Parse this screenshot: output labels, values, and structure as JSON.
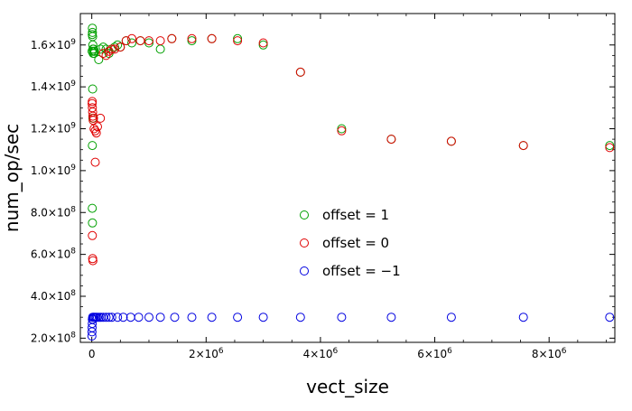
{
  "chart_data": {
    "type": "scatter",
    "xlabel": "vect_size",
    "ylabel": "num_op/sec",
    "xlim": [
      -200000,
      9150000
    ],
    "ylim": [
      180000000,
      1750000000
    ],
    "x_ticks": [
      {
        "value": 0,
        "mantissa": "0",
        "exp": ""
      },
      {
        "value": 2000000,
        "mantissa": "2×10",
        "exp": "6"
      },
      {
        "value": 4000000,
        "mantissa": "4×10",
        "exp": "6"
      },
      {
        "value": 6000000,
        "mantissa": "6×10",
        "exp": "6"
      },
      {
        "value": 8000000,
        "mantissa": "8×10",
        "exp": "6"
      }
    ],
    "y_ticks": [
      {
        "value": 200000000,
        "mantissa": "2.0×10",
        "exp": "8"
      },
      {
        "value": 400000000,
        "mantissa": "4.0×10",
        "exp": "8"
      },
      {
        "value": 600000000,
        "mantissa": "6.0×10",
        "exp": "8"
      },
      {
        "value": 800000000,
        "mantissa": "8.0×10",
        "exp": "8"
      },
      {
        "value": 1000000000,
        "mantissa": "1.0×10",
        "exp": "9"
      },
      {
        "value": 1200000000,
        "mantissa": "1.2×10",
        "exp": "9"
      },
      {
        "value": 1400000000,
        "mantissa": "1.4×10",
        "exp": "9"
      },
      {
        "value": 1600000000,
        "mantissa": "1.6×10",
        "exp": "9"
      }
    ],
    "grid": false,
    "legend_placement": "center-right",
    "series": [
      {
        "name": "offset = 1",
        "color": "#00a000",
        "points": [
          [
            5000,
            1570000000
          ],
          [
            8000,
            1650000000
          ],
          [
            10000,
            1680000000
          ],
          [
            12000,
            1660000000
          ],
          [
            15000,
            1640000000
          ],
          [
            18000,
            1600000000
          ],
          [
            20000,
            1580000000
          ],
          [
            25000,
            1560000000
          ],
          [
            30000,
            1580000000
          ],
          [
            35000,
            1570000000
          ],
          [
            40000,
            1560000000
          ],
          [
            50000,
            1570000000
          ],
          [
            15000,
            1390000000
          ],
          [
            20000,
            1250000000
          ],
          [
            10000,
            1120000000
          ],
          [
            8000,
            820000000
          ],
          [
            12000,
            750000000
          ],
          [
            120000,
            1530000000
          ],
          [
            150000,
            1580000000
          ],
          [
            200000,
            1590000000
          ],
          [
            250000,
            1580000000
          ],
          [
            300000,
            1560000000
          ],
          [
            350000,
            1580000000
          ],
          [
            400000,
            1590000000
          ],
          [
            450000,
            1600000000
          ],
          [
            500000,
            1590000000
          ],
          [
            600000,
            1620000000
          ],
          [
            700000,
            1610000000
          ],
          [
            850000,
            1620000000
          ],
          [
            1000000,
            1610000000
          ],
          [
            1200000,
            1580000000
          ],
          [
            1400000,
            1630000000
          ],
          [
            1750000,
            1620000000
          ],
          [
            2100000,
            1630000000
          ],
          [
            2550000,
            1630000000
          ],
          [
            3000000,
            1600000000
          ],
          [
            3650000,
            1470000000
          ],
          [
            4370000,
            1200000000
          ],
          [
            5240000,
            1150000000
          ],
          [
            6290000,
            1140000000
          ],
          [
            7550000,
            1120000000
          ],
          [
            9060000,
            1120000000
          ]
        ]
      },
      {
        "name": "offset = 0",
        "color": "#e00000",
        "points": [
          [
            5000,
            1320000000
          ],
          [
            8000,
            1330000000
          ],
          [
            10000,
            1300000000
          ],
          [
            15000,
            1280000000
          ],
          [
            20000,
            1260000000
          ],
          [
            25000,
            1240000000
          ],
          [
            30000,
            1250000000
          ],
          [
            40000,
            1200000000
          ],
          [
            60000,
            1190000000
          ],
          [
            80000,
            1180000000
          ],
          [
            100000,
            1210000000
          ],
          [
            150000,
            1250000000
          ],
          [
            60000,
            1040000000
          ],
          [
            10000,
            690000000
          ],
          [
            15000,
            580000000
          ],
          [
            20000,
            570000000
          ],
          [
            200000,
            1560000000
          ],
          [
            250000,
            1550000000
          ],
          [
            300000,
            1570000000
          ],
          [
            350000,
            1580000000
          ],
          [
            400000,
            1580000000
          ],
          [
            500000,
            1590000000
          ],
          [
            600000,
            1620000000
          ],
          [
            700000,
            1630000000
          ],
          [
            850000,
            1620000000
          ],
          [
            1000000,
            1620000000
          ],
          [
            1200000,
            1620000000
          ],
          [
            1400000,
            1630000000
          ],
          [
            1750000,
            1630000000
          ],
          [
            2100000,
            1630000000
          ],
          [
            2550000,
            1620000000
          ],
          [
            3000000,
            1610000000
          ],
          [
            3650000,
            1470000000
          ],
          [
            4370000,
            1190000000
          ],
          [
            5240000,
            1150000000
          ],
          [
            6290000,
            1140000000
          ],
          [
            7550000,
            1120000000
          ],
          [
            9060000,
            1110000000
          ]
        ]
      },
      {
        "name": "offset = −1",
        "color": "#0000e0",
        "points": [
          [
            2000,
            210000000
          ],
          [
            4000,
            230000000
          ],
          [
            6000,
            250000000
          ],
          [
            8000,
            270000000
          ],
          [
            10000,
            290000000
          ],
          [
            15000,
            300000000
          ],
          [
            20000,
            290000000
          ],
          [
            30000,
            300000000
          ],
          [
            40000,
            300000000
          ],
          [
            60000,
            300000000
          ],
          [
            80000,
            300000000
          ],
          [
            100000,
            300000000
          ],
          [
            130000,
            300000000
          ],
          [
            160000,
            300000000
          ],
          [
            200000,
            300000000
          ],
          [
            250000,
            300000000
          ],
          [
            300000,
            300000000
          ],
          [
            350000,
            300000000
          ],
          [
            450000,
            300000000
          ],
          [
            550000,
            300000000
          ],
          [
            680000,
            300000000
          ],
          [
            820000,
            300000000
          ],
          [
            1000000,
            300000000
          ],
          [
            1200000,
            300000000
          ],
          [
            1450000,
            300000000
          ],
          [
            1750000,
            300000000
          ],
          [
            2100000,
            300000000
          ],
          [
            2550000,
            300000000
          ],
          [
            3000000,
            300000000
          ],
          [
            3650000,
            300000000
          ],
          [
            4370000,
            300000000
          ],
          [
            5240000,
            300000000
          ],
          [
            6290000,
            300000000
          ],
          [
            7550000,
            300000000
          ],
          [
            9060000,
            300000000
          ]
        ]
      }
    ]
  }
}
